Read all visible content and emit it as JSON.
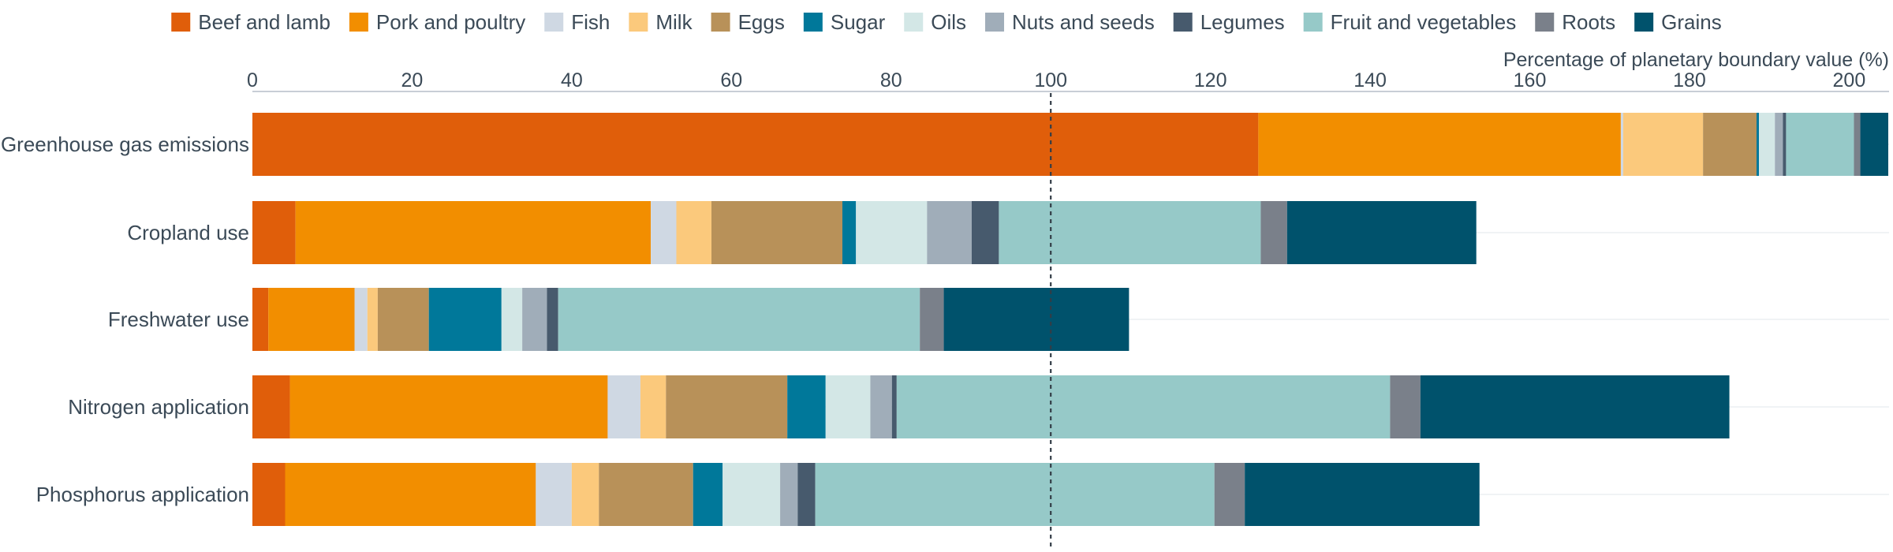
{
  "chart_data": {
    "type": "bar",
    "orientation": "horizontal",
    "stacked": true,
    "xlabel": "Percentage of planetary boundary value (%)",
    "xlim": [
      0,
      205
    ],
    "ticks": [
      0,
      20,
      40,
      60,
      80,
      100,
      120,
      140,
      160,
      180,
      200
    ],
    "reference_line": {
      "value": 100,
      "style": "dashed"
    },
    "legend_position": "top",
    "categories": [
      "Greenhouse gas emissions",
      "Cropland use",
      "Freshwater use",
      "Nitrogen application",
      "Phosphorus application"
    ],
    "series": [
      {
        "name": "Beef and lamb",
        "color": "#e05e0a",
        "values": [
          126.0,
          5.4,
          2.0,
          4.7,
          4.1
        ]
      },
      {
        "name": "Pork and poultry",
        "color": "#f28e00",
        "values": [
          45.4,
          44.5,
          10.8,
          39.8,
          31.4
        ]
      },
      {
        "name": "Fish",
        "color": "#cfd8e3",
        "values": [
          0.3,
          3.2,
          1.6,
          4.1,
          4.5
        ]
      },
      {
        "name": "Milk",
        "color": "#fbc97c",
        "values": [
          10.0,
          4.4,
          1.3,
          3.2,
          3.4
        ]
      },
      {
        "name": "Eggs",
        "color": "#b89159",
        "values": [
          6.7,
          16.4,
          6.4,
          15.2,
          11.8
        ]
      },
      {
        "name": "Sugar",
        "color": "#00789a",
        "values": [
          0.3,
          1.7,
          9.1,
          4.8,
          3.7
        ]
      },
      {
        "name": "Oils",
        "color": "#d3e7e6",
        "values": [
          2.0,
          8.9,
          2.6,
          5.6,
          7.2
        ]
      },
      {
        "name": "Nuts and seeds",
        "color": "#a0adb9",
        "values": [
          1.0,
          5.6,
          3.1,
          2.7,
          2.2
        ]
      },
      {
        "name": "Legumes",
        "color": "#475a6d",
        "values": [
          0.4,
          3.4,
          1.4,
          0.6,
          2.2
        ]
      },
      {
        "name": "Fruit and vegetables",
        "color": "#96c9c8",
        "values": [
          8.5,
          32.8,
          45.3,
          61.8,
          50.0
        ]
      },
      {
        "name": "Roots",
        "color": "#7a808a",
        "values": [
          0.8,
          3.3,
          3.0,
          3.8,
          3.8
        ]
      },
      {
        "name": "Grains",
        "color": "#00526c",
        "values": [
          3.5,
          23.7,
          23.2,
          38.7,
          29.4
        ]
      }
    ]
  }
}
